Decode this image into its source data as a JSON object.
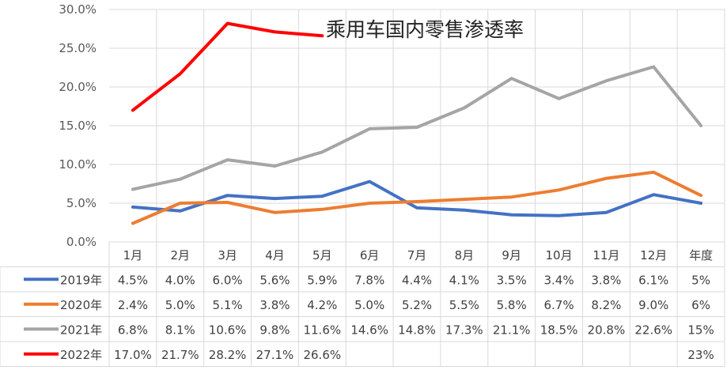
{
  "chart_data": {
    "type": "line",
    "title": "乘用车国内零售渗透率",
    "categories": [
      "1月",
      "2月",
      "3月",
      "4月",
      "5月",
      "6月",
      "7月",
      "8月",
      "9月",
      "10月",
      "11月",
      "12月",
      "年度"
    ],
    "y_ticks": [
      "0.0%",
      "5.0%",
      "10.0%",
      "15.0%",
      "20.0%",
      "25.0%",
      "30.0%"
    ],
    "ylim": [
      0,
      30
    ],
    "grid": true,
    "legend": "data-table",
    "series": [
      {
        "name": "2019年",
        "color": "#4472c4",
        "values": [
          4.5,
          4.0,
          6.0,
          5.6,
          5.9,
          7.8,
          4.4,
          4.1,
          3.5,
          3.4,
          3.8,
          6.1,
          5
        ],
        "labels": [
          "4.5%",
          "4.0%",
          "6.0%",
          "5.6%",
          "5.9%",
          "7.8%",
          "4.4%",
          "4.1%",
          "3.5%",
          "3.4%",
          "3.8%",
          "6.1%",
          "5%"
        ]
      },
      {
        "name": "2020年",
        "color": "#ed7d31",
        "values": [
          2.4,
          5.0,
          5.1,
          3.8,
          4.2,
          5.0,
          5.2,
          5.5,
          5.8,
          6.7,
          8.2,
          9.0,
          6
        ],
        "labels": [
          "2.4%",
          "5.0%",
          "5.1%",
          "3.8%",
          "4.2%",
          "5.0%",
          "5.2%",
          "5.5%",
          "5.8%",
          "6.7%",
          "8.2%",
          "9.0%",
          "6%"
        ]
      },
      {
        "name": "2021年",
        "color": "#a5a5a5",
        "values": [
          6.8,
          8.1,
          10.6,
          9.8,
          11.6,
          14.6,
          14.8,
          17.3,
          21.1,
          18.5,
          20.8,
          22.6,
          15
        ],
        "labels": [
          "6.8%",
          "8.1%",
          "10.6%",
          "9.8%",
          "11.6%",
          "14.6%",
          "14.8%",
          "17.3%",
          "21.1%",
          "18.5%",
          "20.8%",
          "22.6%",
          "15%"
        ]
      },
      {
        "name": "2022年",
        "color": "#ff0000",
        "values": [
          17.0,
          21.7,
          28.2,
          27.1,
          26.6,
          null,
          null,
          null,
          null,
          null,
          null,
          null,
          null
        ],
        "labels": [
          "17.0%",
          "21.7%",
          "28.2%",
          "27.1%",
          "26.6%",
          "",
          "",
          "",
          "",
          "",
          "",
          "",
          "23%"
        ]
      }
    ]
  }
}
